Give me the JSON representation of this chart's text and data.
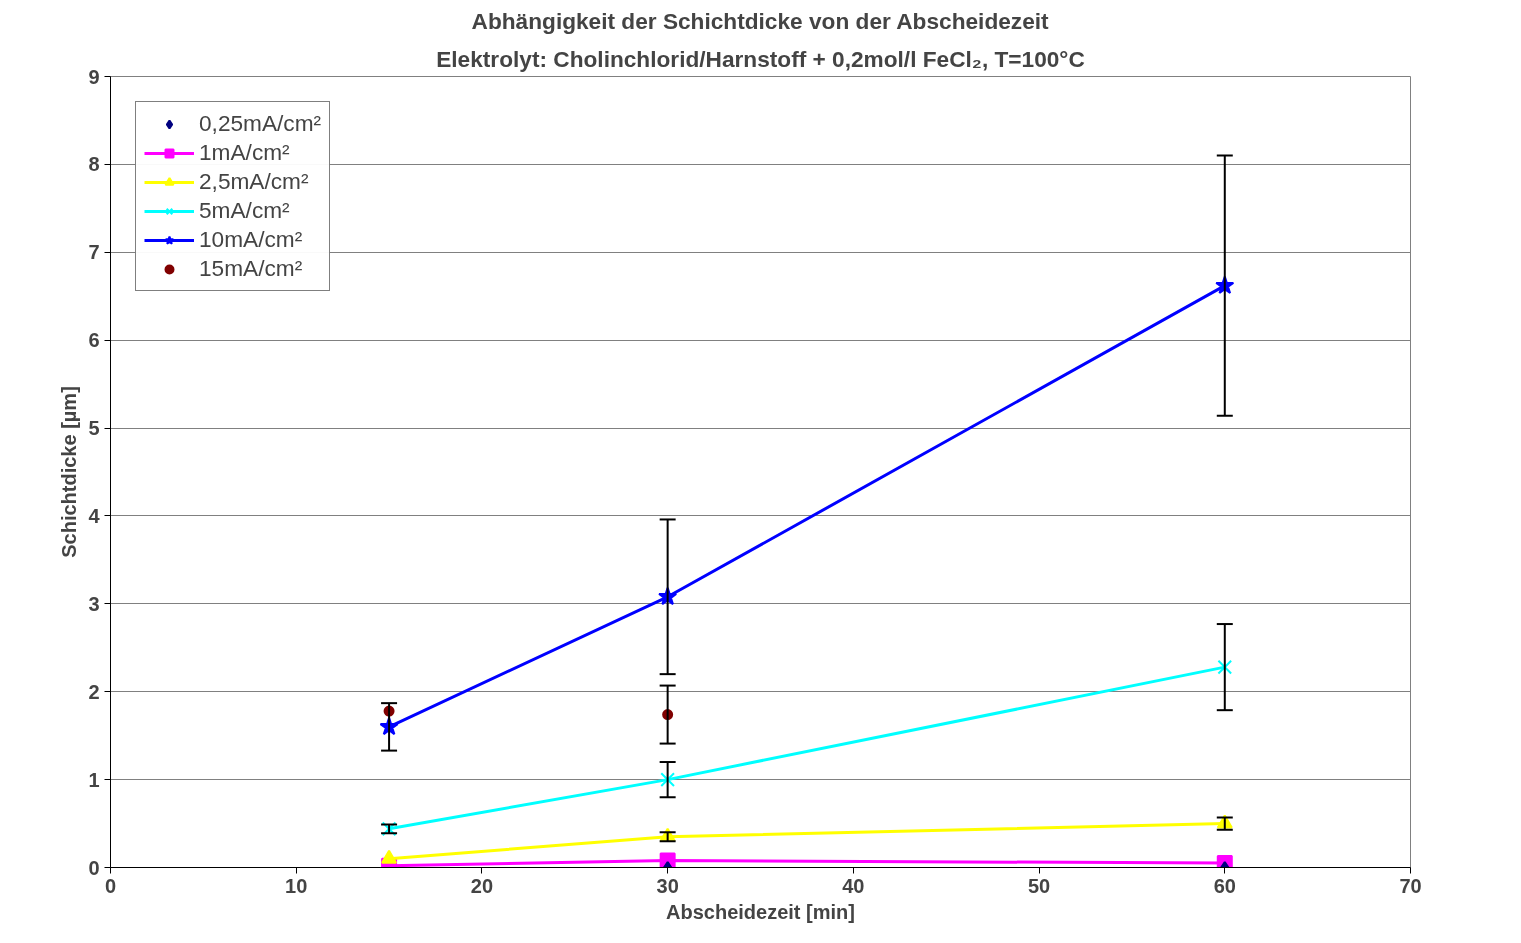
{
  "chart_data": {
    "type": "line",
    "title": "Abhängigkeit der Schichtdicke von der Abscheidezeit",
    "subtitle": "Elektrolyt: Cholinchlorid/Harnstoff + 0,2mol/l FeCl₂, T=100°C",
    "xlabel": "Abscheidezeit [min]",
    "ylabel": "Schichtdicke [µm]",
    "x": [
      15,
      30,
      60
    ],
    "series": [
      {
        "name": "0,25mA/cm²",
        "type": "scatter",
        "marker": "diamond",
        "color": "#000080",
        "values": [
          null,
          0.0,
          0.0
        ]
      },
      {
        "name": "1mA/cm²",
        "marker": "square",
        "color": "#ff00ff",
        "values": [
          0.02,
          0.08,
          0.05
        ]
      },
      {
        "name": "2,5mA/cm²",
        "marker": "triangle",
        "color": "#ffff00",
        "values": [
          0.1,
          0.35,
          0.5
        ],
        "errors": [
          null,
          0.05,
          0.07
        ]
      },
      {
        "name": "5mA/cm²",
        "marker": "cross",
        "color": "#00ffff",
        "values": [
          0.44,
          1.0,
          2.28
        ],
        "errors": [
          0.05,
          0.2,
          0.49
        ]
      },
      {
        "name": "10mA/cm²",
        "marker": "star",
        "color": "#0000ff",
        "values": [
          1.6,
          3.08,
          6.62
        ],
        "errors": [
          0.27,
          0.88,
          1.48
        ]
      },
      {
        "name": "15mA/cm²",
        "type": "scatter",
        "marker": "circle",
        "color": "#800000",
        "values": [
          1.78,
          1.74,
          null
        ],
        "errors": [
          null,
          0.33,
          null
        ]
      }
    ],
    "xlim": [
      0,
      70
    ],
    "xticks": [
      0,
      10,
      20,
      30,
      40,
      50,
      60,
      70
    ],
    "ylim": [
      0,
      9
    ],
    "yticks": [
      0,
      1,
      2,
      3,
      4,
      5,
      6,
      7,
      8,
      9
    ],
    "grid": "y",
    "legend": "top left"
  }
}
